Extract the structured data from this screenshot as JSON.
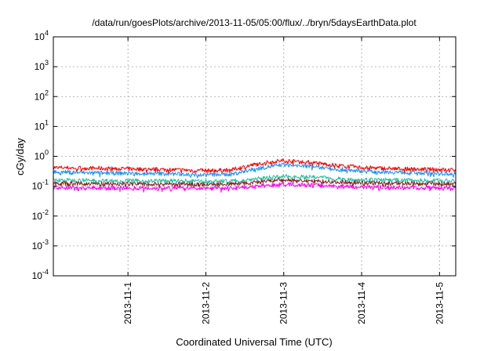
{
  "chart_data": {
    "type": "line",
    "title": "/data/run/goesPlots/archive/2013-11-05/05:00/flux/../bryn/5daysEarthData.plot",
    "xlabel": "Coordinated Universal Time (UTC)",
    "ylabel": "cGy/day",
    "yscale": "log",
    "ylim": [
      0.0001,
      10000
    ],
    "y_ticks": [
      {
        "value": 0.0001,
        "base": "10",
        "exp": "-4"
      },
      {
        "value": 0.001,
        "base": "10",
        "exp": "-3"
      },
      {
        "value": 0.01,
        "base": "10",
        "exp": "-2"
      },
      {
        "value": 0.1,
        "base": "10",
        "exp": "-1"
      },
      {
        "value": 1,
        "base": "10",
        "exp": "0"
      },
      {
        "value": 10,
        "base": "10",
        "exp": "1"
      },
      {
        "value": 100,
        "base": "10",
        "exp": "2"
      },
      {
        "value": 1000,
        "base": "10",
        "exp": "3"
      },
      {
        "value": 10000,
        "base": "10",
        "exp": "4"
      }
    ],
    "xlim": [
      "2013-10-31T01:00",
      "2013-11-05T05:00"
    ],
    "x_ticks": [
      "2013-11-1",
      "2013-11-2",
      "2013-11-3",
      "2013-11-4",
      "2013-11-5"
    ],
    "grid": true,
    "x": [
      "2013-10-31T01:00",
      "2013-10-31T12:00",
      "2013-11-01T00:00",
      "2013-11-01T12:00",
      "2013-11-02T00:00",
      "2013-11-02T08:00",
      "2013-11-02T14:00",
      "2013-11-02T20:00",
      "2013-11-03T00:00",
      "2013-11-03T08:00",
      "2013-11-03T16:00",
      "2013-11-04T00:00",
      "2013-11-04T12:00",
      "2013-11-05T00:00",
      "2013-11-05T03:00",
      "2013-11-05T05:00"
    ],
    "series": [
      {
        "color": "#ff0000",
        "values": [
          0.42,
          0.4,
          0.38,
          0.36,
          0.33,
          0.35,
          0.5,
          0.65,
          0.72,
          0.62,
          0.5,
          0.42,
          0.38,
          0.36,
          0.35,
          0.35
        ]
      },
      {
        "color": "#1e90ff",
        "values": [
          0.3,
          0.28,
          0.27,
          0.26,
          0.24,
          0.25,
          0.35,
          0.46,
          0.52,
          0.46,
          0.38,
          0.32,
          0.29,
          0.27,
          0.26,
          0.26
        ]
      },
      {
        "color": "#20c0a0",
        "values": [
          0.16,
          0.155,
          0.15,
          0.15,
          0.145,
          0.15,
          0.17,
          0.2,
          0.21,
          0.2,
          0.18,
          0.165,
          0.16,
          0.155,
          0.15,
          0.15
        ]
      },
      {
        "color": "#8b2020",
        "values": [
          0.125,
          0.12,
          0.12,
          0.118,
          0.115,
          0.118,
          0.13,
          0.15,
          0.16,
          0.15,
          0.14,
          0.13,
          0.125,
          0.12,
          0.12,
          0.12
        ]
      },
      {
        "color": "#ff00ff",
        "values": [
          0.09,
          0.088,
          0.087,
          0.086,
          0.085,
          0.087,
          0.095,
          0.11,
          0.115,
          0.11,
          0.1,
          0.095,
          0.09,
          0.088,
          0.087,
          0.088
        ]
      }
    ]
  }
}
